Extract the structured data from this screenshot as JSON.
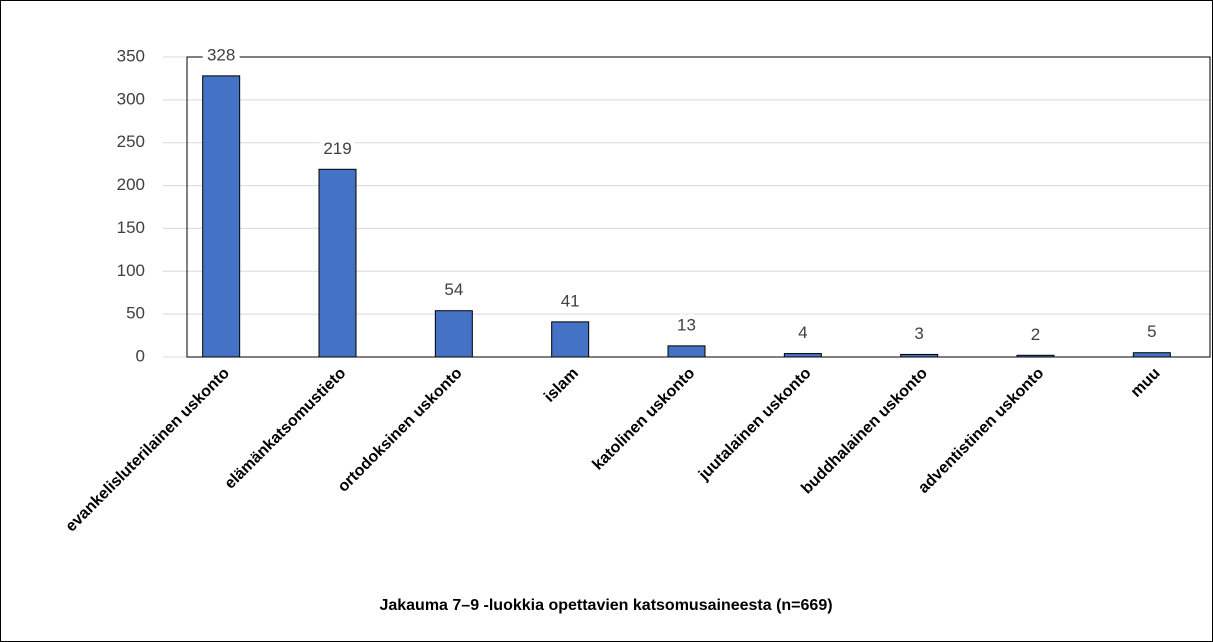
{
  "chart_data": {
    "type": "bar",
    "title": "Jakauma 7–9 -luokkia opettavien katsomusaineesta (n=669)",
    "categories": [
      "evankelisluterilainen uskonto",
      "elämänkatsomustieto",
      "ortodoksinen uskonto",
      "islam",
      "katolinen uskonto",
      "juutalainen uskonto",
      "buddhalainen uskonto",
      "adventistinen uskonto",
      "muu"
    ],
    "values": [
      328,
      219,
      54,
      41,
      13,
      4,
      3,
      2,
      5
    ],
    "color": "#4472c4",
    "ylim": [
      0,
      350
    ],
    "yticks": [
      0,
      50,
      100,
      150,
      200,
      250,
      300,
      350
    ],
    "grid": true
  }
}
